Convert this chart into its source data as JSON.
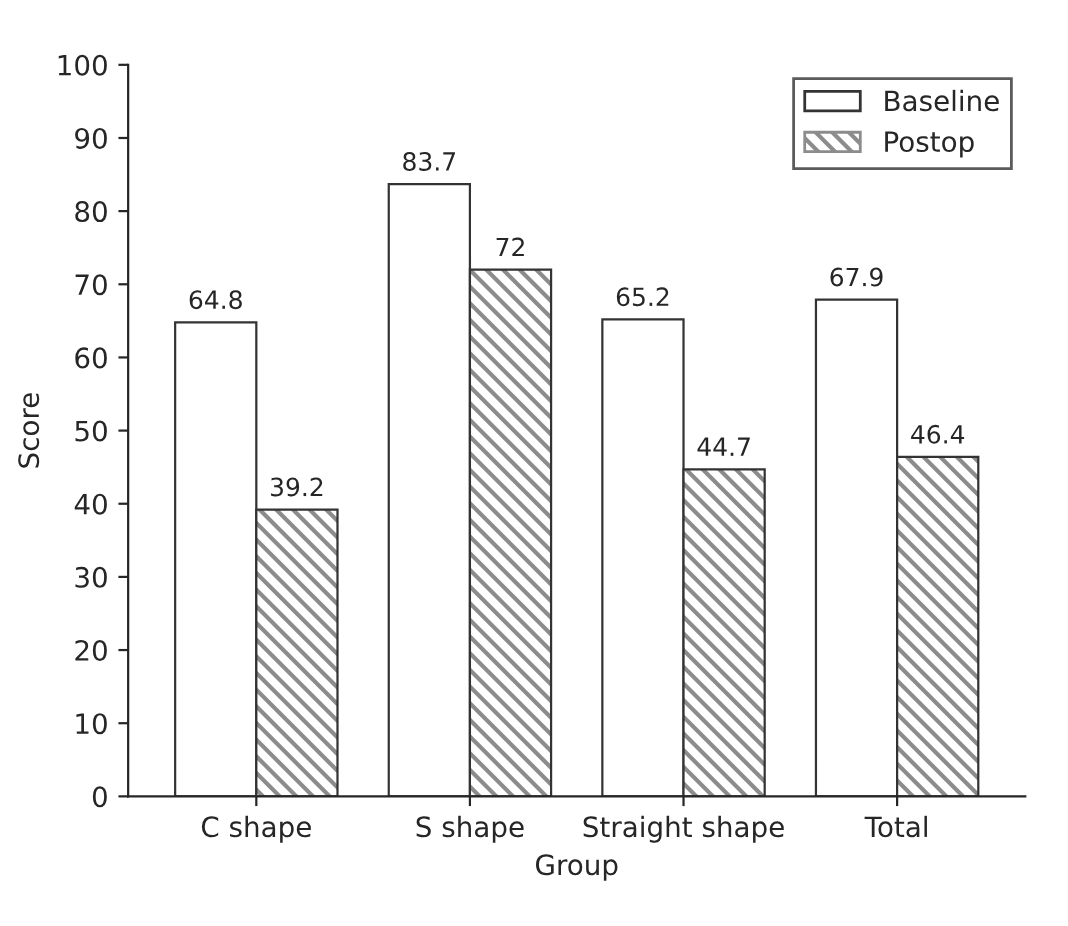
{
  "chart_data": {
    "type": "bar",
    "xlabel": "Group",
    "ylabel": "Score",
    "categories": [
      "C shape",
      "S shape",
      "Straight shape",
      "Total"
    ],
    "series": [
      {
        "name": "Baseline",
        "color": "#ffffff",
        "values": [
          64.8,
          83.7,
          65.2,
          67.9
        ]
      },
      {
        "name": "Postop",
        "color": "#8c8c8c",
        "values": [
          39.2,
          72,
          44.7,
          46.4
        ]
      }
    ],
    "ylim": [
      0,
      100
    ],
    "yticks": [
      0,
      10,
      20,
      30,
      40,
      50,
      60,
      70,
      80,
      90,
      100
    ],
    "data_labels": true,
    "grid": false,
    "legend": "top right"
  }
}
